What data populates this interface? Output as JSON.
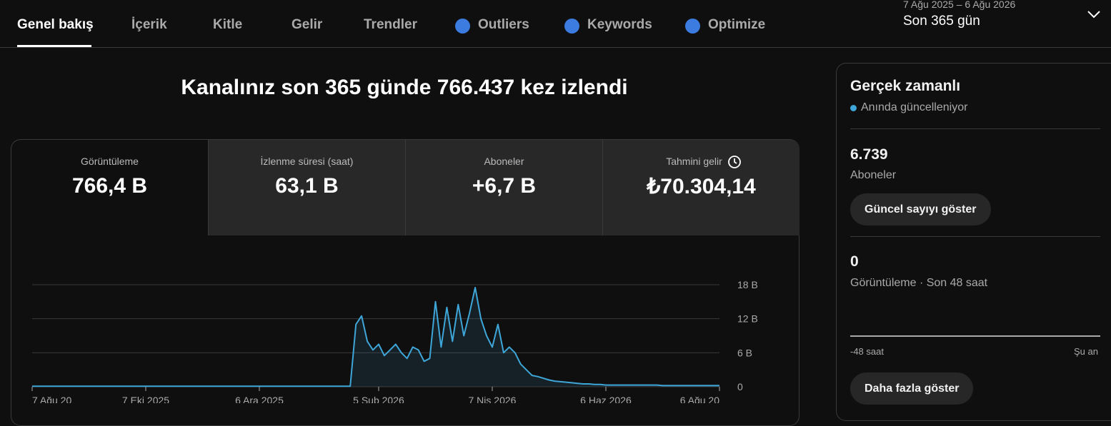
{
  "tabs": [
    "Genel bakış",
    "İçerik",
    "Kitle",
    "Gelir",
    "Trendler",
    "Outliers",
    "Keywords",
    "Optimize"
  ],
  "date_range": {
    "dates": "7 Ağu 2025 – 6 Ağu 2026",
    "label": "Son 365 gün"
  },
  "headline": "Kanalınız son 365 günde 766.437 kez izlendi",
  "metrics": [
    {
      "label": "Görüntüleme",
      "value": "766,4 B"
    },
    {
      "label": "İzlenme süresi (saat)",
      "value": "63,1 B"
    },
    {
      "label": "Aboneler",
      "value": "+6,7 B"
    },
    {
      "label": "Tahmini gelir",
      "value": "₺70.304,14"
    }
  ],
  "chart_data": {
    "type": "line",
    "color": "#3ea6d8",
    "grid": true,
    "categories": [
      "7 Ağu 20",
      null,
      null,
      null,
      null,
      null,
      null,
      null,
      null,
      null,
      null,
      null,
      null,
      null,
      null,
      null,
      null,
      null,
      null,
      null,
      "7 Eki 2025",
      null,
      null,
      null,
      null,
      null,
      null,
      null,
      null,
      null,
      null,
      null,
      null,
      null,
      null,
      null,
      null,
      null,
      null,
      null,
      "6 Ara 2025",
      null,
      null,
      null,
      null,
      null,
      null,
      null,
      null,
      null,
      null,
      null,
      null,
      null,
      null,
      null,
      null,
      null,
      null,
      null,
      null,
      "5 Şub 2026",
      null,
      null,
      null,
      null,
      null,
      null,
      null,
      null,
      null,
      null,
      null,
      null,
      null,
      null,
      null,
      null,
      null,
      null,
      null,
      "7 Nis 2026",
      null,
      null,
      null,
      null,
      null,
      null,
      null,
      null,
      null,
      null,
      null,
      null,
      null,
      null,
      null,
      null,
      null,
      null,
      null,
      "6 Haz 2026",
      null,
      null,
      null,
      null,
      null,
      null,
      null,
      null,
      null,
      null,
      null,
      null,
      null,
      null,
      null,
      null,
      null,
      null,
      null,
      "6 Ağu 20"
    ],
    "values": [
      0.1,
      0.1,
      0.1,
      0.1,
      0.1,
      0.1,
      0.1,
      0.1,
      0.1,
      0.1,
      0.1,
      0.1,
      0.1,
      0.1,
      0.1,
      0.1,
      0.1,
      0.1,
      0.1,
      0.1,
      0.1,
      0.1,
      0.1,
      0.1,
      0.1,
      0.1,
      0.1,
      0.1,
      0.1,
      0.1,
      0.1,
      0.1,
      0.1,
      0.1,
      0.1,
      0.1,
      0.1,
      0.1,
      0.1,
      0.1,
      0.1,
      0.1,
      0.1,
      0.1,
      0.1,
      0.1,
      0.1,
      0.1,
      0.1,
      0.1,
      0.1,
      0.1,
      0.1,
      0.1,
      0.1,
      0.1,
      0.1,
      11,
      12.5,
      8,
      6.5,
      7.5,
      5.5,
      6.5,
      7.5,
      6,
      5,
      7,
      6.5,
      4.5,
      5,
      15,
      7,
      14,
      8,
      14.5,
      9,
      13,
      17.5,
      12,
      9,
      7,
      11,
      6,
      7,
      6,
      4,
      3,
      2,
      1.8,
      1.5,
      1.2,
      1,
      0.9,
      0.8,
      0.7,
      0.6,
      0.5,
      0.5,
      0.4,
      0.4,
      0.3,
      0.3,
      0.3,
      0.3,
      0.3,
      0.3,
      0.3,
      0.3,
      0.3,
      0.3,
      0.2,
      0.2,
      0.2,
      0.2,
      0.2,
      0.2,
      0.2,
      0.2,
      0.2,
      0.2,
      0.2
    ],
    "ylim": [
      0,
      18
    ],
    "yticks": [
      0,
      {
        "value": 6,
        "label": "6 B"
      },
      {
        "value": 12,
        "label": "12 B"
      },
      {
        "value": 18,
        "label": "18 B"
      }
    ]
  },
  "realtime": {
    "title": "Gerçek zamanlı",
    "status": "Anında güncelleniyor",
    "subscribers": {
      "value": "6.739",
      "label": "Aboneler"
    },
    "button_current": "Güncel sayıyı göster",
    "views": {
      "value": "0",
      "label": "Görüntüleme · Son 48 saat"
    },
    "axis_start": "-48 saat",
    "axis_end": "Şu an",
    "button_more": "Daha fazla göster"
  }
}
